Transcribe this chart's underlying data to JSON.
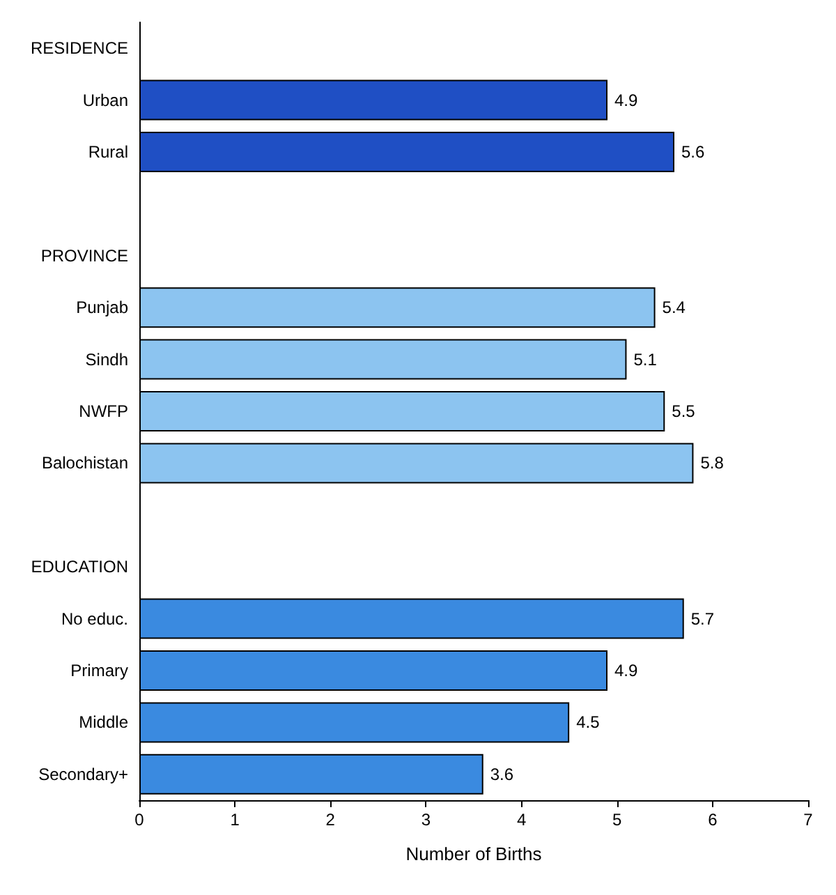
{
  "chart_data": {
    "type": "bar",
    "orientation": "horizontal",
    "xlabel": "Number of Births",
    "categories": [
      "RESIDENCE",
      "Urban",
      "Rural",
      null,
      "PROVINCE",
      "Punjab",
      "Sindh",
      "NWFP",
      "Balochistan",
      null,
      "EDUCATION",
      "No educ.",
      "Primary",
      "Middle",
      "Secondary+"
    ],
    "values": [
      null,
      4.9,
      5.6,
      null,
      null,
      5.4,
      5.1,
      5.5,
      5.8,
      null,
      null,
      5.7,
      4.9,
      4.5,
      3.6
    ],
    "colors": [
      null,
      "#1f4fc4",
      "#1f4fc4",
      null,
      null,
      "#8cc4f0",
      "#8cc4f0",
      "#8cc4f0",
      "#8cc4f0",
      null,
      null,
      "#3a8ae0",
      "#3a8ae0",
      "#3a8ae0",
      "#3a8ae0"
    ],
    "data_labels": true,
    "xlim": [
      0,
      7
    ],
    "xticks": [
      0,
      1,
      2,
      3,
      4,
      5,
      6,
      7
    ]
  }
}
